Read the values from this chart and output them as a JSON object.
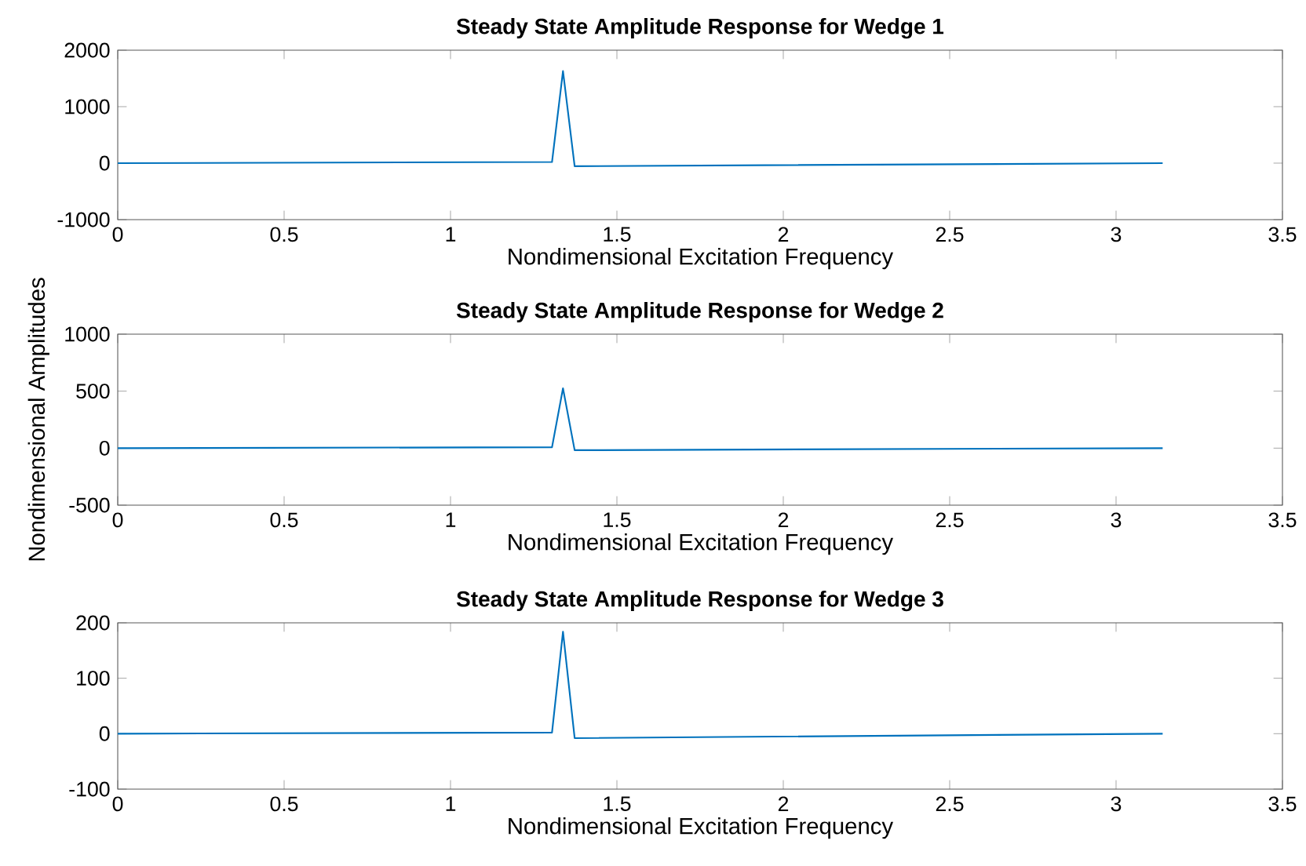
{
  "chart_data": [
    {
      "type": "line",
      "title": "Steady State Amplitude Response for Wedge 1",
      "xlabel": "Nondimensional Excitation Frequency",
      "x": [
        0,
        1.305,
        1.338,
        1.373,
        3.14
      ],
      "values": [
        0,
        20,
        1630,
        -55,
        0
      ],
      "color": "#0072bd",
      "xlim": [
        0,
        3.5
      ],
      "xticks": [
        0,
        0.5,
        1,
        1.5,
        2,
        2.5,
        3,
        3.5
      ],
      "ylim": [
        -1000,
        2000
      ],
      "yticks": [
        -1000,
        0,
        1000,
        2000
      ]
    },
    {
      "type": "line",
      "title": "Steady State Amplitude Response for Wedge 2",
      "xlabel": "Nondimensional Excitation Frequency",
      "ylabel": "Nondimensional Amplitudes",
      "x": [
        0,
        1.305,
        1.338,
        1.373,
        3.14
      ],
      "values": [
        0,
        8,
        525,
        -18,
        0
      ],
      "color": "#0072bd",
      "xlim": [
        0,
        3.5
      ],
      "xticks": [
        0,
        0.5,
        1,
        1.5,
        2,
        2.5,
        3,
        3.5
      ],
      "ylim": [
        -500,
        1000
      ],
      "yticks": [
        -500,
        0,
        500,
        1000
      ]
    },
    {
      "type": "line",
      "title": "Steady State Amplitude Response for Wedge 3",
      "xlabel": "Nondimensional Excitation Frequency",
      "x": [
        0,
        1.305,
        1.338,
        1.373,
        3.14
      ],
      "values": [
        0,
        2,
        184,
        -8,
        0
      ],
      "color": "#0072bd",
      "xlim": [
        0,
        3.5
      ],
      "xticks": [
        0,
        0.5,
        1,
        1.5,
        2,
        2.5,
        3,
        3.5
      ],
      "ylim": [
        -100,
        200
      ],
      "yticks": [
        -100,
        0,
        100,
        200
      ]
    }
  ]
}
